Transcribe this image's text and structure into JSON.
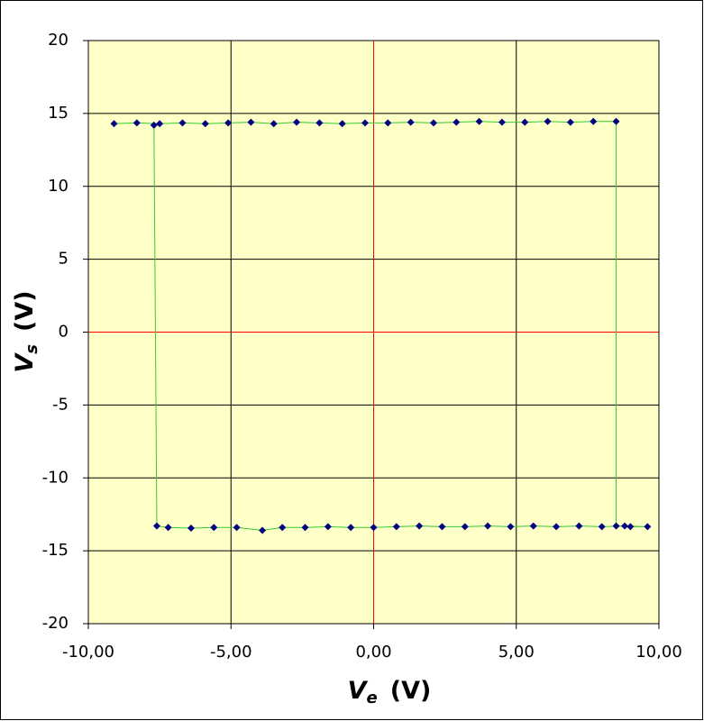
{
  "chart_data": {
    "type": "line",
    "x_label": {
      "symbol": "V",
      "subscript": "e",
      "unit": "(V)"
    },
    "y_label": {
      "symbol": "V",
      "subscript": "s",
      "unit": "(V)"
    },
    "xlim": [
      -10,
      10
    ],
    "xticks": [
      {
        "value": -10,
        "label": "-10,00"
      },
      {
        "value": -5,
        "label": "-5,00"
      },
      {
        "value": 0,
        "label": "0,00"
      },
      {
        "value": 5,
        "label": "5,00"
      },
      {
        "value": 10,
        "label": "10,00"
      }
    ],
    "ylim": [
      -20,
      20
    ],
    "yticks": [
      -20,
      -15,
      -10,
      -5,
      0,
      5,
      10,
      15,
      20
    ],
    "grid": true,
    "grid_color": "#000000",
    "zero_line_color": "#ff0000",
    "background": "#ffffc8",
    "series": [
      {
        "line_color": "#33cc33",
        "marker_color": "#000080",
        "x": [
          -9.1,
          -8.3,
          -7.5,
          -6.7,
          -5.9,
          -5.1,
          -4.3,
          -3.5,
          -2.7,
          -1.9,
          -1.1,
          -0.3,
          0.5,
          1.3,
          2.1,
          2.9,
          3.7,
          4.5,
          5.3,
          6.1,
          6.9,
          7.7,
          8.5,
          8.5,
          9.0,
          9.6,
          8.8,
          8.0,
          7.2,
          6.4,
          5.6,
          4.8,
          4.0,
          3.2,
          2.4,
          1.6,
          0.8,
          0.0,
          -0.8,
          -1.6,
          -2.4,
          -3.2,
          -3.9,
          -4.8,
          -5.6,
          -6.4,
          -7.2,
          -7.6,
          -7.7
        ],
        "values": [
          14.3,
          14.35,
          14.3,
          14.35,
          14.3,
          14.35,
          14.4,
          14.3,
          14.4,
          14.35,
          14.3,
          14.35,
          14.35,
          14.4,
          14.35,
          14.4,
          14.45,
          14.4,
          14.4,
          14.45,
          14.4,
          14.45,
          14.45,
          -13.3,
          -13.35,
          -13.35,
          -13.3,
          -13.35,
          -13.3,
          -13.35,
          -13.3,
          -13.35,
          -13.3,
          -13.35,
          -13.35,
          -13.3,
          -13.35,
          -13.4,
          -13.4,
          -13.35,
          -13.4,
          -13.4,
          -13.6,
          -13.4,
          -13.4,
          -13.45,
          -13.4,
          -13.3,
          14.2
        ]
      }
    ]
  }
}
